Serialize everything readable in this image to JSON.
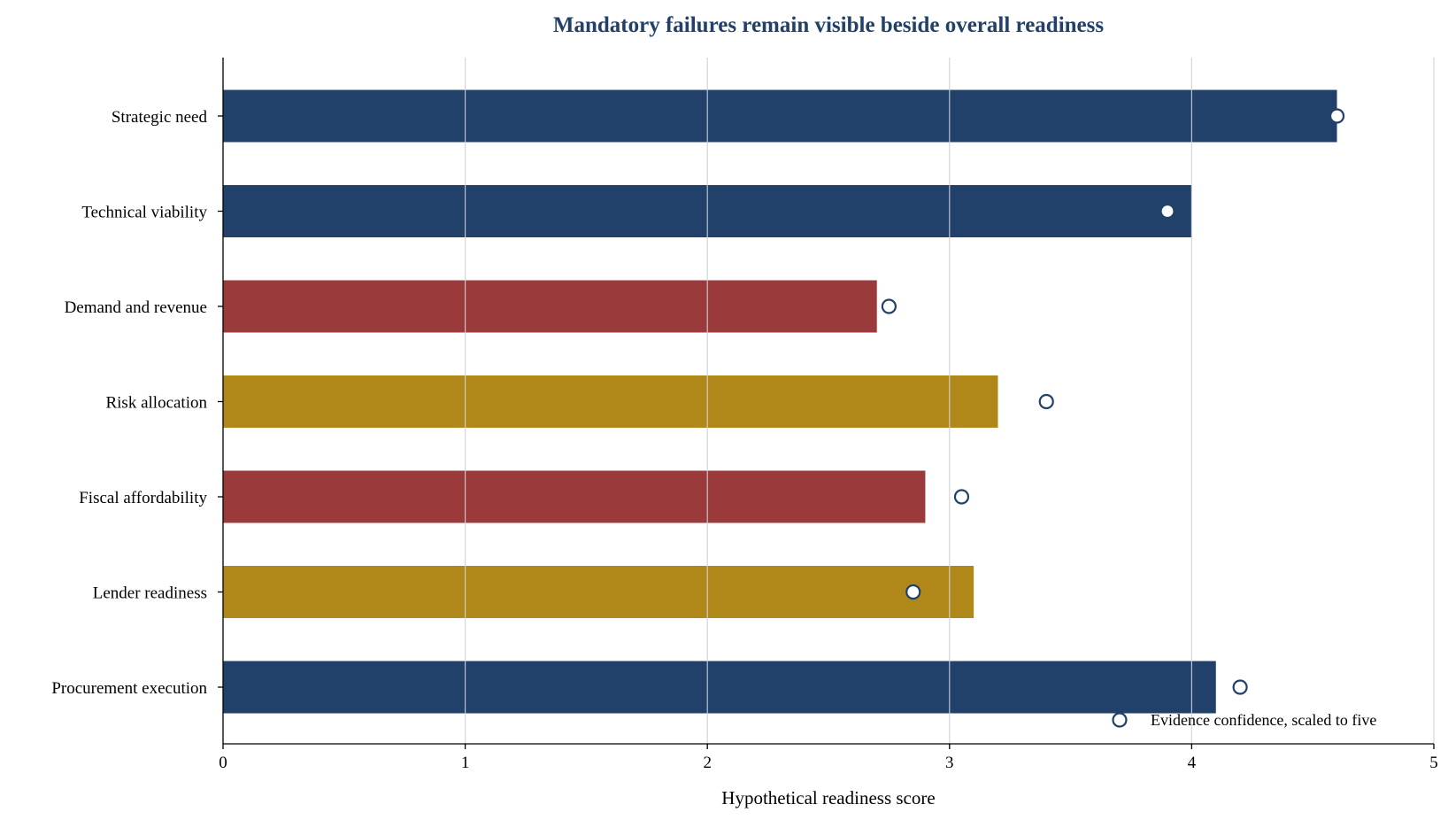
{
  "chart_data": {
    "type": "bar",
    "orientation": "horizontal",
    "title": "Mandatory failures remain visible beside overall readiness",
    "xlabel": "Hypothetical readiness score",
    "ylabel": "",
    "xlim": [
      0,
      5
    ],
    "xticks": [
      "0",
      "1",
      "2",
      "3",
      "4",
      "5"
    ],
    "grid": "vertical",
    "legend_position": "bottom-right",
    "categories": [
      "Strategic need",
      "Technical viability",
      "Demand and revenue",
      "Risk allocation",
      "Fiscal affordability",
      "Lender readiness",
      "Procurement execution"
    ],
    "values": [
      4.6,
      4.0,
      2.7,
      3.2,
      2.9,
      3.1,
      4.1
    ],
    "bar_colors": [
      "#21416a",
      "#21416a",
      "#9b3a3a",
      "#b08819",
      "#9b3a3a",
      "#b08819",
      "#21416a"
    ],
    "series": [
      {
        "name": "Evidence confidence, scaled to five",
        "type": "scatter",
        "values": [
          4.6,
          3.9,
          2.75,
          3.4,
          3.05,
          2.85,
          4.2
        ]
      }
    ],
    "colors": {
      "title": "#21416a",
      "marker_edge": "#21416a",
      "marker_fill": "#ffffff",
      "grid": "#d5d9e0",
      "axis": "#000000"
    }
  }
}
